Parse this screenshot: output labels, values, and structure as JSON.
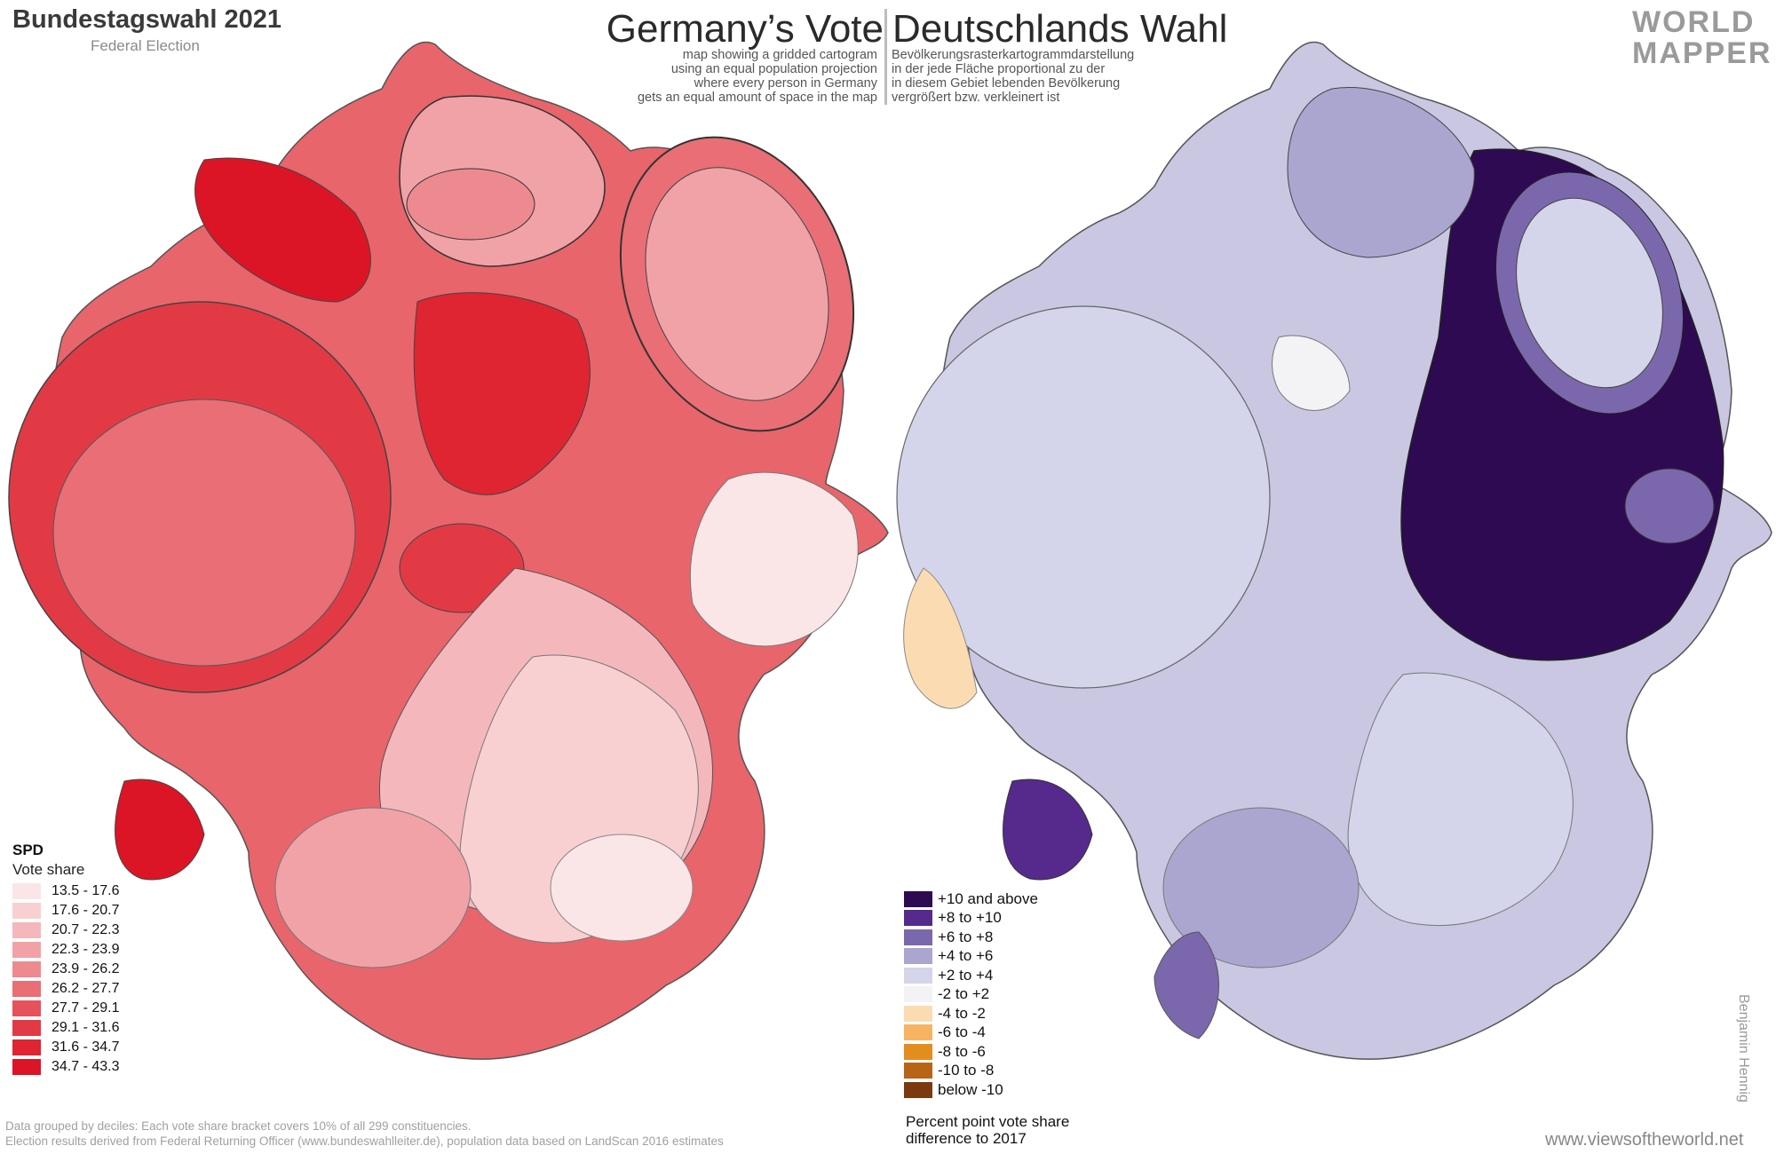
{
  "header": {
    "title": "Bundestagswahl 2021",
    "subtitle": "Federal Election",
    "title_en": "Germany’s Vote",
    "title_de": "Deutschlands Wahl",
    "desc_en": [
      "map showing a gridded cartogram",
      "using an equal population projection",
      "where every person in Germany",
      "gets an equal amount of space in the map"
    ],
    "desc_de": [
      "Bevölkerungsrasterkartogrammdarstellung",
      "in der jede Fläche proportional zu der",
      "in diesem Gebiet lebenden Bevölkerung",
      "vergrößert bzw. verkleinert ist"
    ]
  },
  "logo": {
    "line1": "WORLD",
    "line2": "MAPPER"
  },
  "left_legend": {
    "heading": "SPD",
    "caption": "Vote share",
    "items": [
      {
        "label": "13.5 - 17.6",
        "color": "#fbe6e7"
      },
      {
        "label": "17.6 - 20.7",
        "color": "#f8d0d2"
      },
      {
        "label": "20.7 - 22.3",
        "color": "#f4b8bc"
      },
      {
        "label": "22.3 - 23.9",
        "color": "#f1a2a7"
      },
      {
        "label": "23.9 - 26.2",
        "color": "#ed8a90"
      },
      {
        "label": "26.2 - 27.7",
        "color": "#e96e76"
      },
      {
        "label": "27.7 - 29.1",
        "color": "#e5525c"
      },
      {
        "label": "29.1 - 31.6",
        "color": "#e23a45"
      },
      {
        "label": "31.6 - 34.7",
        "color": "#de2531"
      },
      {
        "label": "34.7 - 43.3",
        "color": "#db1525"
      }
    ]
  },
  "right_legend": {
    "items": [
      {
        "label": "+10 and above",
        "color": "#2e0a52"
      },
      {
        "label": "+8 to +10",
        "color": "#552a8c"
      },
      {
        "label": "+6 to +8",
        "color": "#7b68ac"
      },
      {
        "label": "+4 to +6",
        "color": "#aaa6cf"
      },
      {
        "label": "+2 to +4",
        "color": "#d4d4ea"
      },
      {
        "label": "-2 to +2",
        "color": "#f3f3f5"
      },
      {
        "label": "-4 to -2",
        "color": "#fbdcb2"
      },
      {
        "label": "-6 to -4",
        "color": "#f6b462"
      },
      {
        "label": "-8 to -6",
        "color": "#e48d1f"
      },
      {
        "label": "-10 to -8",
        "color": "#b86416"
      },
      {
        "label": "below -10",
        "color": "#7a3a0d"
      }
    ],
    "note_line1": "Percent point vote share",
    "note_line2": "difference to 2017"
  },
  "footnote": {
    "line1": "Data grouped by deciles: Each vote share bracket covers 10% of all 299 constituencies.",
    "line2": "Election results derived from Federal Returning Officer (www.bundeswahlleiter.de), population data based on LandScan 2016 estimates"
  },
  "website": "www.viewsoftheworld.net",
  "credit": "Benjamin Hennig"
}
